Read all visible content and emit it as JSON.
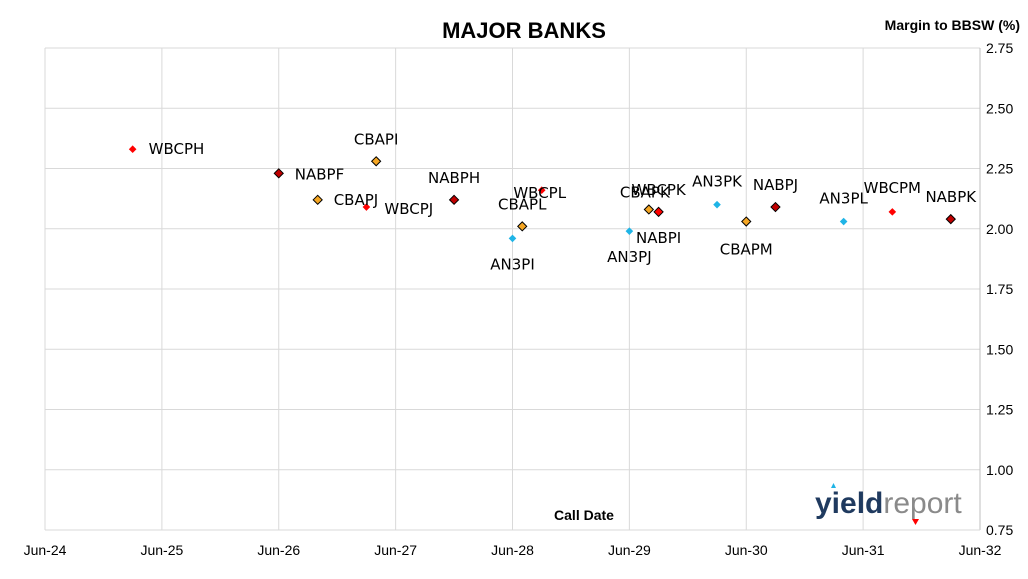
{
  "chart_data": {
    "type": "scatter",
    "title": "MAJOR BANKS",
    "xlabel": "Call Date",
    "ylabel": "Margin to BBSW (%)",
    "x_ticks": [
      "Jun-24",
      "Jun-25",
      "Jun-26",
      "Jun-27",
      "Jun-28",
      "Jun-29",
      "Jun-30",
      "Jun-31",
      "Jun-32"
    ],
    "xlim": [
      "Jun-24",
      "Jun-32"
    ],
    "ylim": [
      0.75,
      2.75
    ],
    "y_ticks": [
      "0.75",
      "1.00",
      "1.25",
      "1.50",
      "1.75",
      "2.00",
      "2.25",
      "2.50",
      "2.75"
    ],
    "y_axis_side": "right",
    "grid": "horizontal",
    "colors": {
      "WBC": "#ff0000",
      "NAB": "#c00000",
      "CBA": "#f5a623",
      "ANZ": "#1fb4e6"
    },
    "points": [
      {
        "label": "WBCPH",
        "x": "Mar-25",
        "y": 2.33,
        "group": "WBC"
      },
      {
        "label": "NABPF",
        "x": "Jun-26",
        "y": 2.23,
        "group": "NAB"
      },
      {
        "label": "CBAPJ",
        "x": "Oct-26",
        "y": 2.12,
        "group": "CBA"
      },
      {
        "label": "WBCPJ",
        "x": "Mar-27",
        "y": 2.09,
        "group": "WBC"
      },
      {
        "label": "CBAPI",
        "x": "Apr-27",
        "y": 2.28,
        "group": "CBA"
      },
      {
        "label": "NABPH",
        "x": "Dec-27",
        "y": 2.12,
        "group": "NAB"
      },
      {
        "label": "AN3PI",
        "x": "Jun-28",
        "y": 1.96,
        "group": "ANZ"
      },
      {
        "label": "CBAPL",
        "x": "Jul-28",
        "y": 2.01,
        "group": "CBA"
      },
      {
        "label": "WBCPL",
        "x": "Sep-28",
        "y": 2.16,
        "group": "WBC"
      },
      {
        "label": "AN3PJ",
        "x": "Jun-29",
        "y": 1.99,
        "group": "ANZ"
      },
      {
        "label": "CBAPK",
        "x": "Aug-29",
        "y": 2.08,
        "group": "CBA"
      },
      {
        "label": "NABPI",
        "x": "Sep-29",
        "y": 2.07,
        "group": "NAB"
      },
      {
        "label": "WBCPK",
        "x": "Sep-29",
        "y": 2.07,
        "group": "WBC"
      },
      {
        "label": "AN3PK",
        "x": "Mar-30",
        "y": 2.1,
        "group": "ANZ"
      },
      {
        "label": "CBAPM",
        "x": "Jun-30",
        "y": 2.03,
        "group": "CBA"
      },
      {
        "label": "NABPJ",
        "x": "Sep-30",
        "y": 2.09,
        "group": "NAB"
      },
      {
        "label": "AN3PL",
        "x": "Apr-31",
        "y": 2.03,
        "group": "ANZ"
      },
      {
        "label": "WBCPM",
        "x": "Sep-31",
        "y": 2.07,
        "group": "WBC"
      },
      {
        "label": "NABPK",
        "x": "Mar-32",
        "y": 2.04,
        "group": "NAB"
      }
    ]
  },
  "logo": {
    "part1": "yield",
    "part2": "report"
  }
}
